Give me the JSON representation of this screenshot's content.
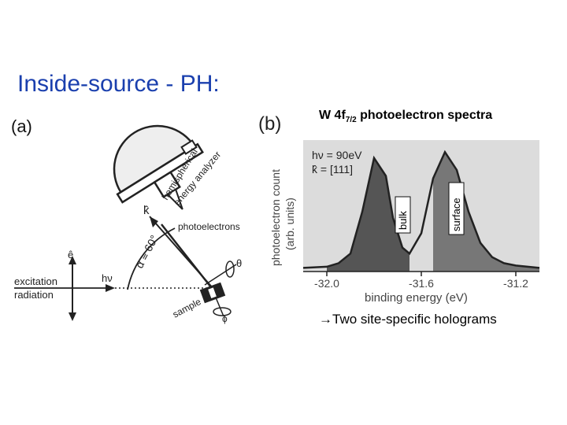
{
  "slide": {
    "title": "Inside-source - PH:",
    "footnote": "→Two site-specific holograms"
  },
  "panel_a": {
    "label": "(a)",
    "analyzer_label_line1": "hemispherical",
    "analyzer_label_line2": "energy analyzer",
    "k_label": "k̂",
    "photoelectrons_label": "photoelectrons",
    "alpha_label": "α ≡ 60°",
    "e_label": "ê",
    "hv_label": "hν",
    "excitation_label": "excitation",
    "radiation_label": "radiation",
    "theta_label": "θ",
    "phi_label": "ϕ",
    "sample_label": "sample"
  },
  "panel_b": {
    "label": "(b)",
    "title_main": "W 4f",
    "title_sub": "7/2",
    "title_rest": " photoelectron spectra",
    "hv_text": "hν = 90eV",
    "k_text": "k̂ = [111]",
    "bulk_label": "bulk",
    "surface_label": "surface",
    "ylabel_line1": "photoelectron count",
    "ylabel_line2": "(arb. units)",
    "xlabel": "binding energy (eV)",
    "tick_labels": [
      "-32.0",
      "-31.6",
      "-31.2"
    ]
  },
  "chart_data": {
    "type": "line",
    "x": [
      -32.1,
      -32.0,
      -31.95,
      -31.9,
      -31.85,
      -31.8,
      -31.75,
      -31.72,
      -31.68,
      -31.65,
      -31.6,
      -31.55,
      -31.5,
      -31.45,
      -31.4,
      -31.35,
      -31.3,
      -31.25,
      -31.2,
      -31.15,
      -31.1
    ],
    "y": [
      0.03,
      0.04,
      0.07,
      0.15,
      0.5,
      0.95,
      0.8,
      0.45,
      0.2,
      0.15,
      0.32,
      0.78,
      1.0,
      0.85,
      0.5,
      0.24,
      0.12,
      0.07,
      0.05,
      0.04,
      0.03
    ],
    "xlabel": "binding energy (eV)",
    "ylabel": "photoelectron count (arb. units)",
    "xticks": [
      -32.0,
      -31.6,
      -31.2
    ],
    "xlim": [
      -32.1,
      -31.1
    ],
    "ylim": [
      0,
      1.1
    ],
    "shaded_regions": [
      {
        "name": "bulk",
        "from": -32.0,
        "to": -31.65,
        "color": "#555555"
      },
      {
        "name": "surface",
        "from": -31.55,
        "to": -31.1,
        "color": "#777777"
      }
    ]
  },
  "colors": {
    "title": "#1a3fae",
    "ink": "#222222",
    "bulk_fill": "#555555",
    "surface_fill": "#777777",
    "plot_bg": "#dcdcdc"
  }
}
